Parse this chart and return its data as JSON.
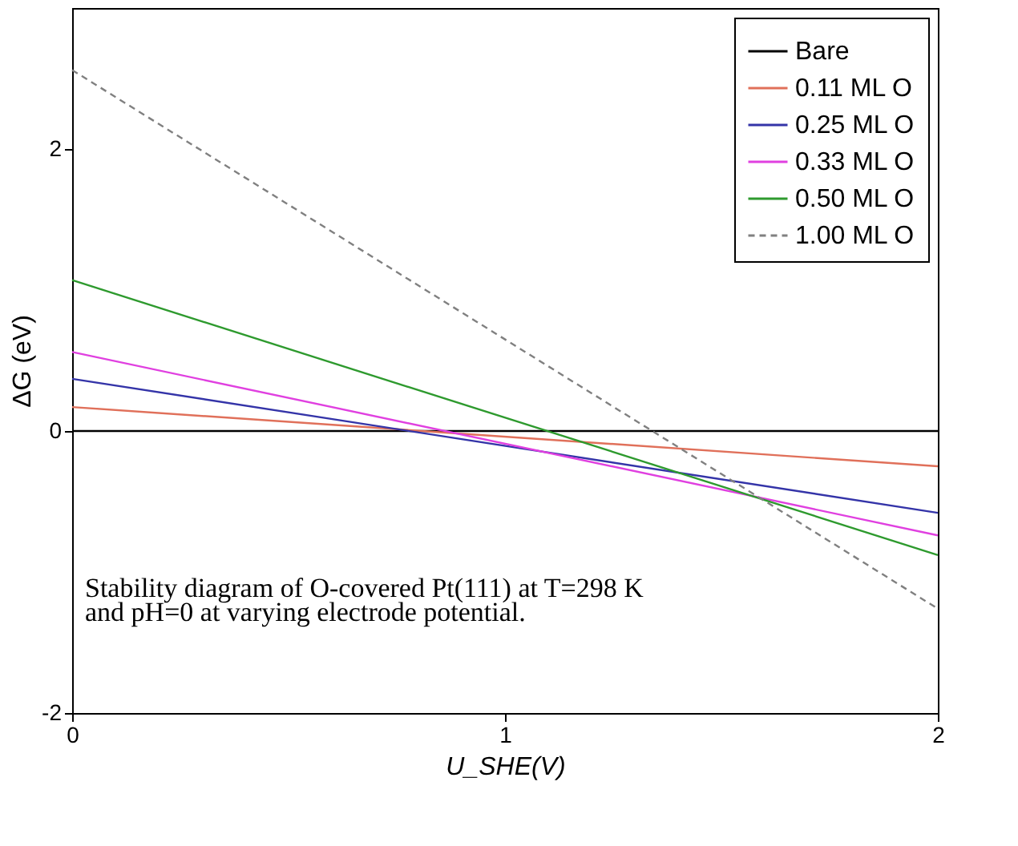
{
  "chart_data": {
    "type": "line",
    "xlabel": "U_SHE(V)",
    "ylabel": "ΔG (eV)",
    "x": [
      0,
      2
    ],
    "series": [
      {
        "name": "Bare",
        "color": "#000000",
        "values": [
          0,
          0
        ]
      },
      {
        "name": "0.11 ML O",
        "color": "#e0705a",
        "values": [
          0.17,
          -0.25
        ]
      },
      {
        "name": "0.25 ML O",
        "color": "#3434a8",
        "values": [
          0.37,
          -0.58
        ]
      },
      {
        "name": "0.33 ML O",
        "color": "#e040e0",
        "values": [
          0.56,
          -0.74
        ]
      },
      {
        "name": "0.50 ML O",
        "color": "#2e9a2e",
        "values": [
          1.07,
          -0.88
        ]
      },
      {
        "name": "1.00 ML O",
        "color": "#808080",
        "values": [
          2.56,
          -1.26
        ],
        "line_style": "dashed"
      }
    ],
    "xlim": [
      0,
      2
    ],
    "ylim": [
      -2,
      3
    ],
    "xticks": [
      0,
      1,
      2
    ],
    "yticks": [
      -2,
      0,
      2
    ],
    "grid": false,
    "legend": "top right",
    "marker": "none",
    "line_style": "solid",
    "annotations": [
      "Stability diagram of O-covered Pt(111) at T=298 K",
      "and pH=0 at varying electrode potential."
    ]
  }
}
